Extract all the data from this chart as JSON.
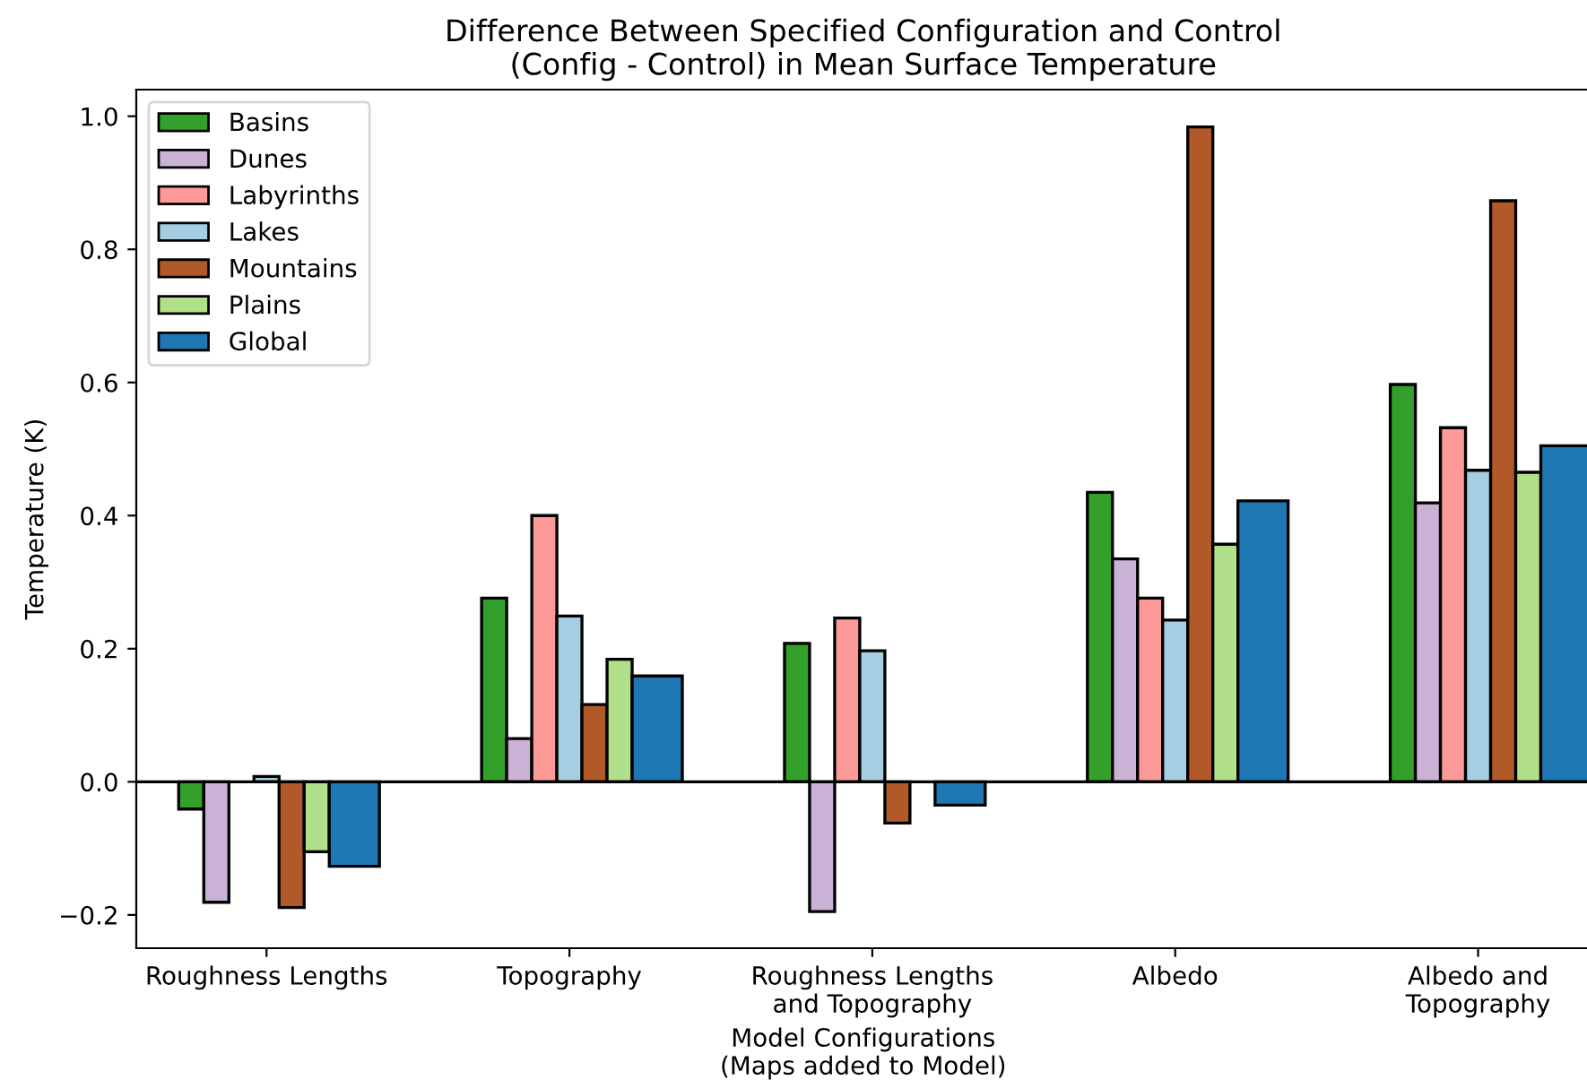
{
  "chart_data": {
    "type": "bar",
    "title": "Difference Between Specified Configuration and Control\n(Config - Control) in Mean Surface Temperature",
    "xlabel": "Model Configurations\n(Maps added to Model)",
    "ylabel": "Temperature (K)",
    "categories": [
      "Roughness Lengths",
      "Topography",
      "Roughness Lengths\nand Topography",
      "Albedo",
      "Albedo and\nTopography"
    ],
    "series": [
      {
        "name": "Basins",
        "color": "#33a02c",
        "values": [
          -0.041,
          0.276,
          0.208,
          0.435,
          0.597
        ]
      },
      {
        "name": "Dunes",
        "color": "#cab2d6",
        "values": [
          -0.181,
          0.065,
          -0.195,
          0.335,
          0.419
        ]
      },
      {
        "name": "Labyrinths",
        "color": "#fb9a99",
        "values": [
          null,
          0.4,
          0.246,
          0.276,
          0.532
        ]
      },
      {
        "name": "Lakes",
        "color": "#a6cee3",
        "values": [
          0.008,
          0.249,
          0.197,
          0.243,
          0.468
        ]
      },
      {
        "name": "Mountains",
        "color": "#b15928",
        "values": [
          -0.189,
          0.116,
          -0.062,
          0.984,
          0.873
        ]
      },
      {
        "name": "Plains",
        "color": "#b2df8a",
        "values": [
          -0.105,
          0.184,
          null,
          0.357,
          0.465
        ]
      },
      {
        "name": "Global",
        "color": "#1f78b4",
        "values": [
          -0.127,
          0.159,
          -0.035,
          0.422,
          0.505
        ]
      }
    ],
    "ylim": [
      -0.25,
      1.04
    ],
    "yticks": [
      {
        "value": -0.2,
        "label": "−0.2"
      },
      {
        "value": 0.0,
        "label": "0.0"
      },
      {
        "value": 0.2,
        "label": "0.2"
      },
      {
        "value": 0.4,
        "label": "0.4"
      },
      {
        "value": 0.6,
        "label": "0.6"
      },
      {
        "value": 0.8,
        "label": "0.8"
      },
      {
        "value": 1.0,
        "label": "1.0"
      }
    ],
    "ref_lines": [
      {
        "axis": "y",
        "value": 0,
        "color": "#000000"
      }
    ],
    "grid": false,
    "legend": "top left"
  }
}
